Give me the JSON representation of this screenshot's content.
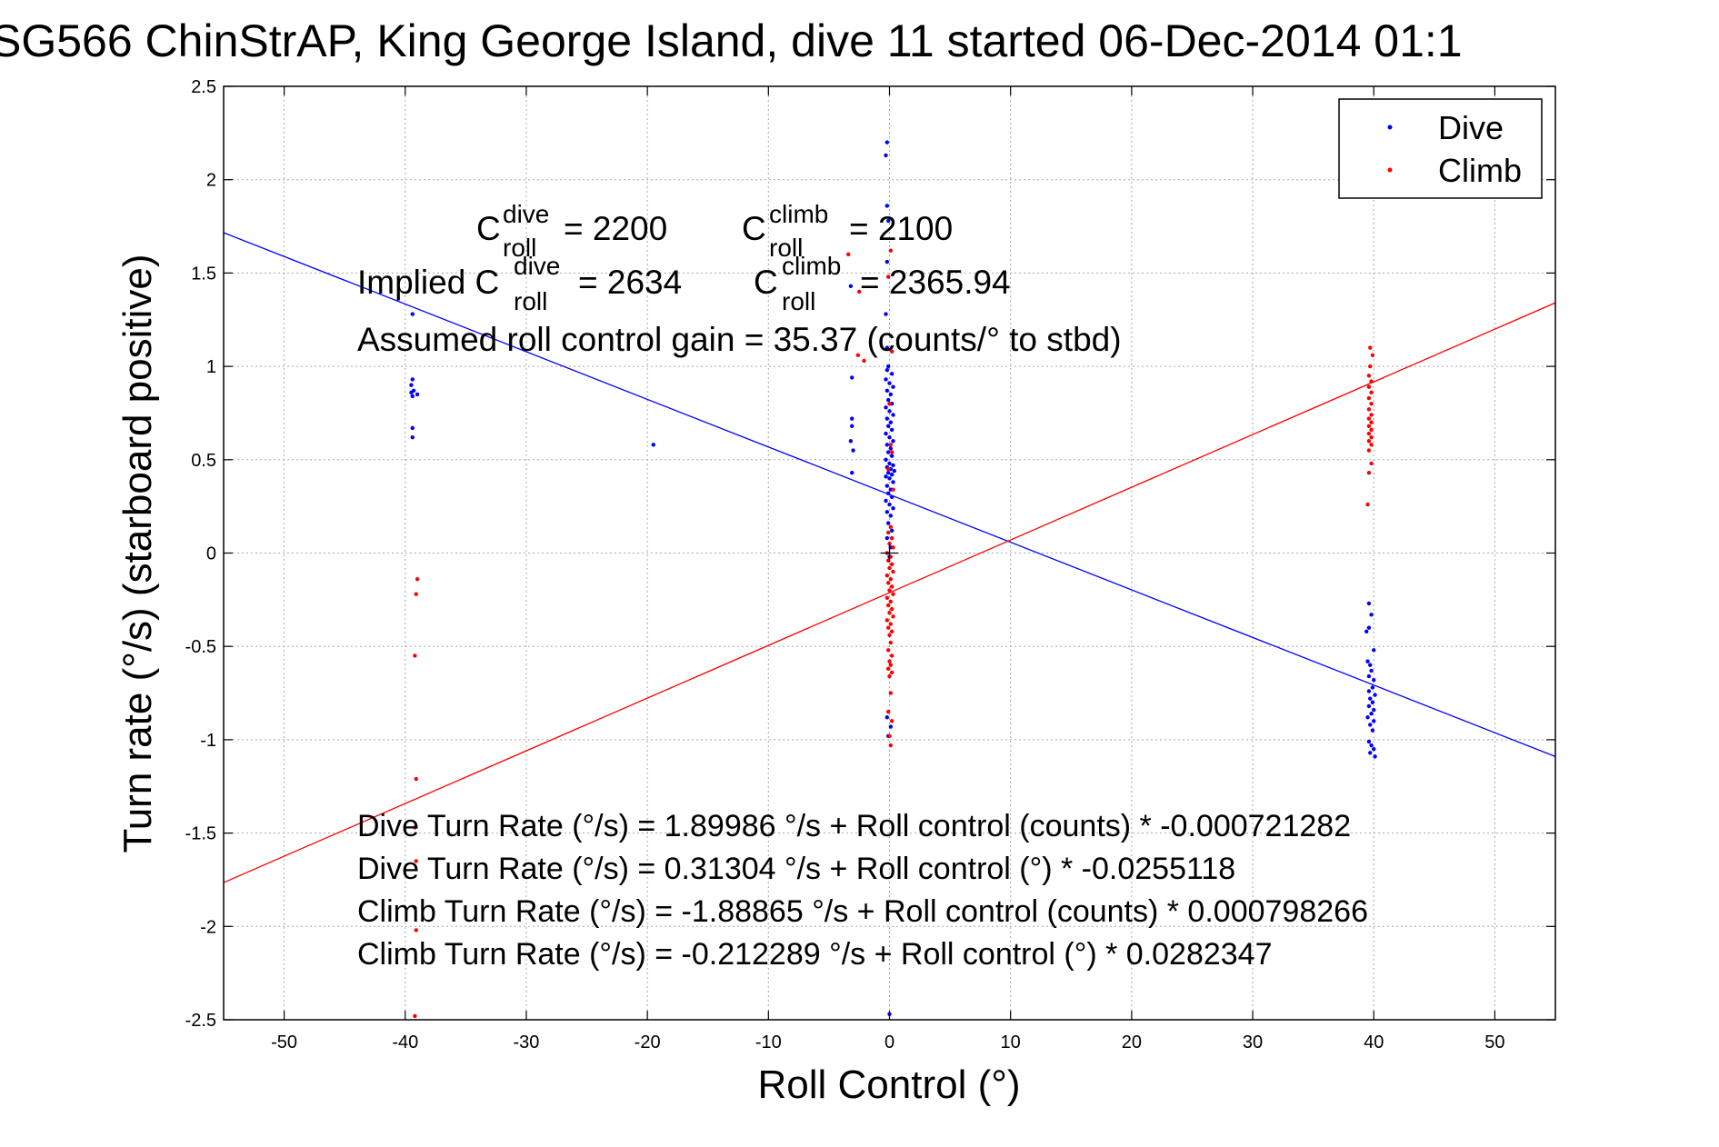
{
  "chart_data": {
    "type": "scatter",
    "title": "SG566 ChinStrAP, King George Island, dive 11 started 06-Dec-2014 01:1",
    "xlabel": "Roll Control (°)",
    "ylabel": "Turn rate (°/s)  (starboard positive)",
    "xlim": [
      -55,
      55
    ],
    "ylim": [
      -2.5,
      2.5
    ],
    "grid": true,
    "legend_position": "top-right",
    "x_ticks": [
      "-50",
      "-40",
      "-30",
      "-20",
      "-10",
      "0",
      "10",
      "20",
      "30",
      "40",
      "50"
    ],
    "x_tick_values": [
      -50,
      -40,
      -30,
      -20,
      -10,
      0,
      10,
      20,
      30,
      40,
      50
    ],
    "y_ticks": [
      "2.5",
      "2",
      "1.5",
      "1",
      "0.5",
      "0",
      "-0.5",
      "-1",
      "-1.5",
      "-2",
      "-2.5"
    ],
    "y_tick_values": [
      2.5,
      2,
      1.5,
      1,
      0.5,
      0,
      -0.5,
      -1,
      -1.5,
      -2,
      -2.5
    ],
    "series": [
      {
        "name": "Dive",
        "color": "#0000ff",
        "points": [
          [
            -39.4,
            1.28
          ],
          [
            -39.4,
            0.93
          ],
          [
            -39.5,
            0.9
          ],
          [
            -39.3,
            0.87
          ],
          [
            -39.5,
            0.86
          ],
          [
            -39.0,
            0.85
          ],
          [
            -39.4,
            0.84
          ],
          [
            -39.4,
            0.67
          ],
          [
            -39.4,
            0.62
          ],
          [
            -19.5,
            0.58
          ],
          [
            -3.2,
            1.43
          ],
          [
            -3.1,
            0.94
          ],
          [
            -3.1,
            0.72
          ],
          [
            -3.1,
            0.68
          ],
          [
            -3.2,
            0.6
          ],
          [
            -3.0,
            0.55
          ],
          [
            -3.1,
            0.43
          ],
          [
            -0.2,
            2.2
          ],
          [
            -0.3,
            2.13
          ],
          [
            -0.2,
            1.86
          ],
          [
            -0.1,
            1.78
          ],
          [
            -0.2,
            1.56
          ],
          [
            -0.3,
            1.28
          ],
          [
            -0.2,
            1.1
          ],
          [
            -0.1,
            1.0
          ],
          [
            -0.2,
            0.98
          ],
          [
            0.2,
            0.96
          ],
          [
            -0.3,
            0.93
          ],
          [
            0.0,
            0.91
          ],
          [
            0.3,
            0.89
          ],
          [
            -0.2,
            0.87
          ],
          [
            0.1,
            0.85
          ],
          [
            -0.1,
            0.82
          ],
          [
            0.2,
            0.8
          ],
          [
            -0.3,
            0.78
          ],
          [
            0.0,
            0.76
          ],
          [
            0.3,
            0.74
          ],
          [
            -0.2,
            0.72
          ],
          [
            0.1,
            0.7
          ],
          [
            -0.1,
            0.68
          ],
          [
            0.2,
            0.66
          ],
          [
            -0.3,
            0.64
          ],
          [
            0.0,
            0.62
          ],
          [
            0.3,
            0.6
          ],
          [
            -0.2,
            0.58
          ],
          [
            0.1,
            0.56
          ],
          [
            -0.1,
            0.54
          ],
          [
            0.2,
            0.52
          ],
          [
            -0.3,
            0.5
          ],
          [
            0.0,
            0.48
          ],
          [
            0.3,
            0.47
          ],
          [
            -0.2,
            0.46
          ],
          [
            0.1,
            0.45
          ],
          [
            0.4,
            0.44
          ],
          [
            -0.1,
            0.43
          ],
          [
            0.2,
            0.42
          ],
          [
            -0.3,
            0.41
          ],
          [
            0.0,
            0.4
          ],
          [
            0.3,
            0.38
          ],
          [
            -0.2,
            0.36
          ],
          [
            0.1,
            0.34
          ],
          [
            -0.1,
            0.32
          ],
          [
            0.2,
            0.3
          ],
          [
            -0.3,
            0.28
          ],
          [
            0.0,
            0.26
          ],
          [
            0.3,
            0.24
          ],
          [
            -0.2,
            0.22
          ],
          [
            0.1,
            0.2
          ],
          [
            -0.1,
            0.16
          ],
          [
            0.2,
            0.12
          ],
          [
            -0.2,
            0.08
          ],
          [
            0.1,
            0.03
          ],
          [
            0.0,
            -0.02
          ],
          [
            -0.2,
            -0.88
          ],
          [
            0.1,
            -0.93
          ],
          [
            -0.1,
            -0.98
          ],
          [
            0.0,
            -2.47
          ],
          [
            39.6,
            -0.27
          ],
          [
            39.8,
            -0.33
          ],
          [
            39.6,
            -0.4
          ],
          [
            39.4,
            -0.42
          ],
          [
            40.0,
            -0.52
          ],
          [
            39.5,
            -0.58
          ],
          [
            39.7,
            -0.6
          ],
          [
            39.8,
            -0.63
          ],
          [
            39.6,
            -0.66
          ],
          [
            40.0,
            -0.68
          ],
          [
            39.9,
            -0.72
          ],
          [
            39.6,
            -0.74
          ],
          [
            40.1,
            -0.76
          ],
          [
            39.7,
            -0.78
          ],
          [
            39.9,
            -0.8
          ],
          [
            39.6,
            -0.82
          ],
          [
            40.0,
            -0.84
          ],
          [
            39.8,
            -0.86
          ],
          [
            39.5,
            -0.88
          ],
          [
            40.0,
            -0.9
          ],
          [
            39.7,
            -0.92
          ],
          [
            39.9,
            -0.95
          ],
          [
            39.6,
            -1.01
          ],
          [
            39.8,
            -1.03
          ],
          [
            40.0,
            -1.05
          ],
          [
            39.7,
            -1.07
          ],
          [
            40.1,
            -1.09
          ]
        ]
      },
      {
        "name": "Climb",
        "color": "#ff0000",
        "points": [
          [
            -39.0,
            -0.14
          ],
          [
            -39.1,
            -0.22
          ],
          [
            -39.2,
            -0.55
          ],
          [
            -39.1,
            -1.21
          ],
          [
            -39.2,
            -1.47
          ],
          [
            -39.1,
            -1.65
          ],
          [
            -39.2,
            -1.9
          ],
          [
            -39.1,
            -2.02
          ],
          [
            -39.2,
            -2.48
          ],
          [
            -3.4,
            1.6
          ],
          [
            -2.5,
            1.4
          ],
          [
            -2.6,
            1.06
          ],
          [
            -2.1,
            1.03
          ],
          [
            0.1,
            1.62
          ],
          [
            -0.1,
            1.48
          ],
          [
            0.2,
            1.08
          ],
          [
            0.0,
            0.8
          ],
          [
            0.1,
            0.58
          ],
          [
            0.2,
            0.54
          ],
          [
            -0.1,
            0.45
          ],
          [
            0.3,
            0.34
          ],
          [
            0.1,
            0.14
          ],
          [
            -0.1,
            0.11
          ],
          [
            0.2,
            0.08
          ],
          [
            0.0,
            0.05
          ],
          [
            0.3,
            0.03
          ],
          [
            -0.2,
            0.0
          ],
          [
            0.1,
            -0.02
          ],
          [
            -0.1,
            -0.04
          ],
          [
            0.2,
            -0.06
          ],
          [
            0.0,
            -0.08
          ],
          [
            0.3,
            -0.1
          ],
          [
            -0.2,
            -0.12
          ],
          [
            0.1,
            -0.14
          ],
          [
            -0.1,
            -0.16
          ],
          [
            0.2,
            -0.18
          ],
          [
            0.0,
            -0.2
          ],
          [
            0.3,
            -0.22
          ],
          [
            -0.2,
            -0.24
          ],
          [
            0.1,
            -0.26
          ],
          [
            -0.1,
            -0.28
          ],
          [
            0.2,
            -0.3
          ],
          [
            0.0,
            -0.32
          ],
          [
            0.3,
            -0.34
          ],
          [
            -0.2,
            -0.36
          ],
          [
            0.1,
            -0.38
          ],
          [
            -0.1,
            -0.4
          ],
          [
            0.2,
            -0.42
          ],
          [
            0.0,
            -0.44
          ],
          [
            0.1,
            -0.48
          ],
          [
            -0.1,
            -0.52
          ],
          [
            0.2,
            -0.55
          ],
          [
            0.0,
            -0.58
          ],
          [
            0.1,
            -0.6
          ],
          [
            -0.1,
            -0.62
          ],
          [
            0.2,
            -0.64
          ],
          [
            0.0,
            -0.66
          ],
          [
            0.1,
            -0.75
          ],
          [
            -0.1,
            -0.85
          ],
          [
            0.2,
            -0.9
          ],
          [
            0.0,
            -0.98
          ],
          [
            0.1,
            -1.03
          ],
          [
            39.7,
            1.1
          ],
          [
            39.9,
            1.06
          ],
          [
            39.7,
            1.0
          ],
          [
            39.6,
            0.95
          ],
          [
            39.8,
            0.92
          ],
          [
            39.6,
            0.89
          ],
          [
            39.8,
            0.86
          ],
          [
            39.6,
            0.83
          ],
          [
            39.8,
            0.8
          ],
          [
            39.6,
            0.77
          ],
          [
            39.8,
            0.74
          ],
          [
            39.6,
            0.72
          ],
          [
            39.8,
            0.7
          ],
          [
            39.6,
            0.68
          ],
          [
            39.8,
            0.66
          ],
          [
            39.6,
            0.64
          ],
          [
            39.8,
            0.62
          ],
          [
            39.6,
            0.6
          ],
          [
            39.8,
            0.58
          ],
          [
            39.6,
            0.55
          ],
          [
            39.8,
            0.48
          ],
          [
            39.6,
            0.43
          ],
          [
            39.5,
            0.26
          ]
        ]
      }
    ],
    "fit_lines": [
      {
        "name": "Dive fit",
        "color": "#0000ff",
        "intercept": 0.31304,
        "slope": -0.0255118
      },
      {
        "name": "Climb fit",
        "color": "#ff0000",
        "intercept": -0.212289,
        "slope": 0.0282347
      }
    ],
    "crosshair_marker": {
      "x": 0,
      "y": 0
    }
  },
  "annotations": {
    "c_dive_base": "C",
    "c_dive_sup": "dive",
    "c_dive_sub": "roll",
    "c_dive_val": "= 2200",
    "c_climb_base": "C",
    "c_climb_sup": "climb",
    "c_climb_sub": "roll",
    "c_climb_val": "= 2100",
    "implied_prefix": "Implied C",
    "implied_dive_sup": "dive",
    "implied_dive_sub": "roll",
    "implied_dive_val": "= 2634",
    "implied_climb_base": "C",
    "implied_climb_sup": "climb",
    "implied_climb_sub": "roll",
    "implied_climb_val": "= 2365.94",
    "gain": "Assumed roll control gain = 35.37 (counts/° to stbd)",
    "eq1": "Dive Turn Rate (°/s) = 1.89986 °/s + Roll control (counts) * -0.000721282",
    "eq2": "Dive Turn Rate (°/s) = 0.31304 °/s + Roll control (°) * -0.0255118",
    "eq3": "Climb Turn Rate (°/s) = -1.88865 °/s + Roll control (counts) * 0.000798266",
    "eq4": "Climb Turn Rate (°/s) = -0.212289 °/s + Roll control (°) * 0.0282347"
  }
}
